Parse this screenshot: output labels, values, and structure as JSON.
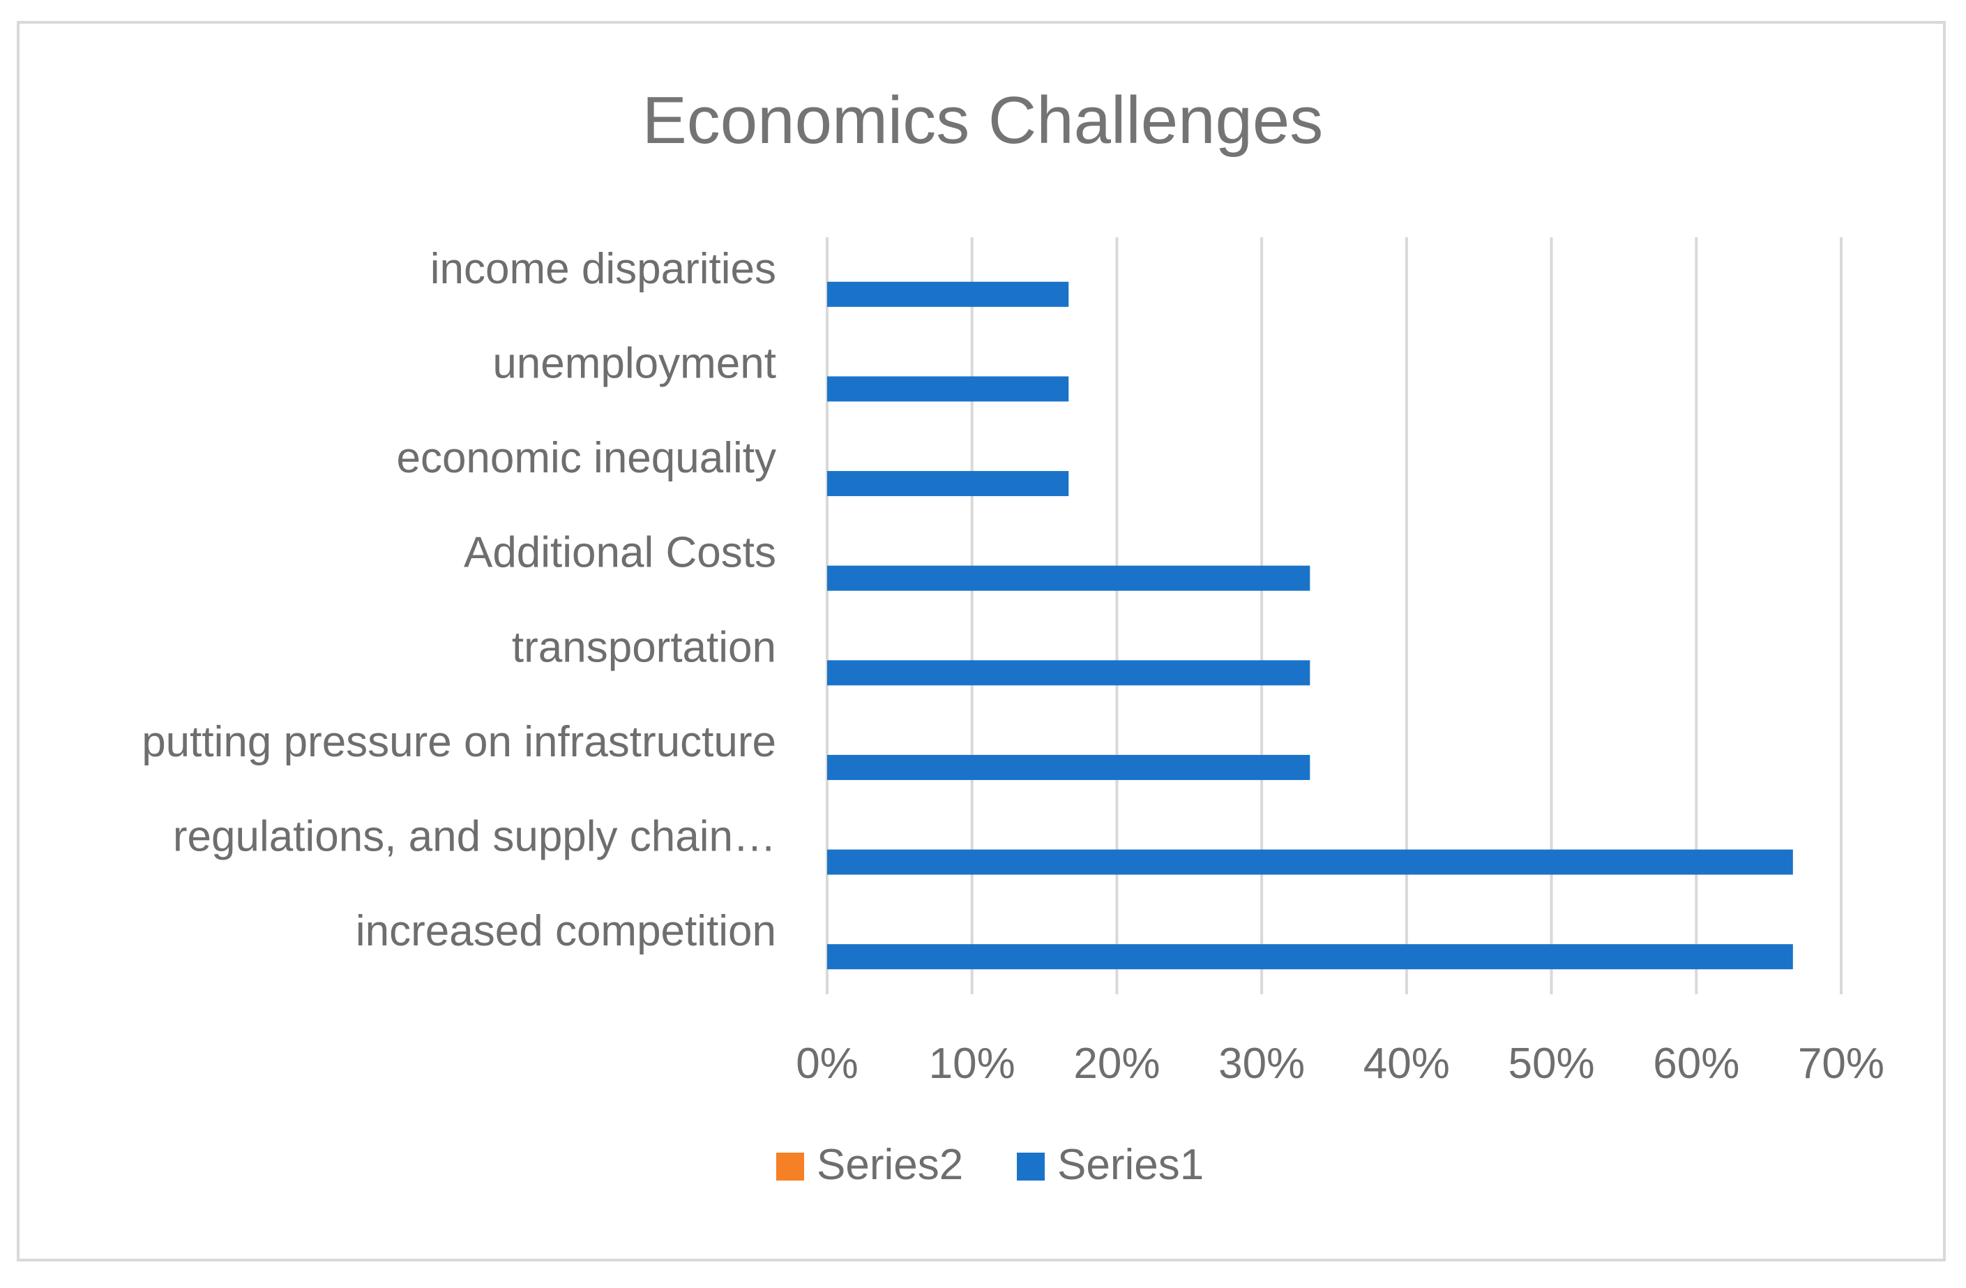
{
  "chart_data": {
    "type": "bar",
    "orientation": "horizontal",
    "title": "Economics Challenges",
    "xlabel": "",
    "ylabel": "",
    "xlim": [
      0,
      0.7
    ],
    "x_ticks": [
      0,
      0.1,
      0.2,
      0.3,
      0.4,
      0.5,
      0.6,
      0.7
    ],
    "x_tick_labels": [
      "0%",
      "10%",
      "20%",
      "30%",
      "40%",
      "50%",
      "60%",
      "70%"
    ],
    "grid": "vertical",
    "legend_position": "bottom",
    "categories": [
      "income disparities",
      "unemployment",
      "economic inequality",
      "Additional Costs",
      "transportation",
      "putting pressure on infrastructure",
      "regulations, and supply chain…",
      "increased competition"
    ],
    "series": [
      {
        "name": "Series2",
        "color": "#f58025",
        "values": [
          null,
          null,
          null,
          null,
          null,
          null,
          null,
          null
        ]
      },
      {
        "name": "Series1",
        "color": "#1a73c8",
        "values": [
          0.1667,
          0.1667,
          0.1667,
          0.3333,
          0.3333,
          0.3333,
          0.6667,
          0.6667
        ]
      }
    ]
  }
}
